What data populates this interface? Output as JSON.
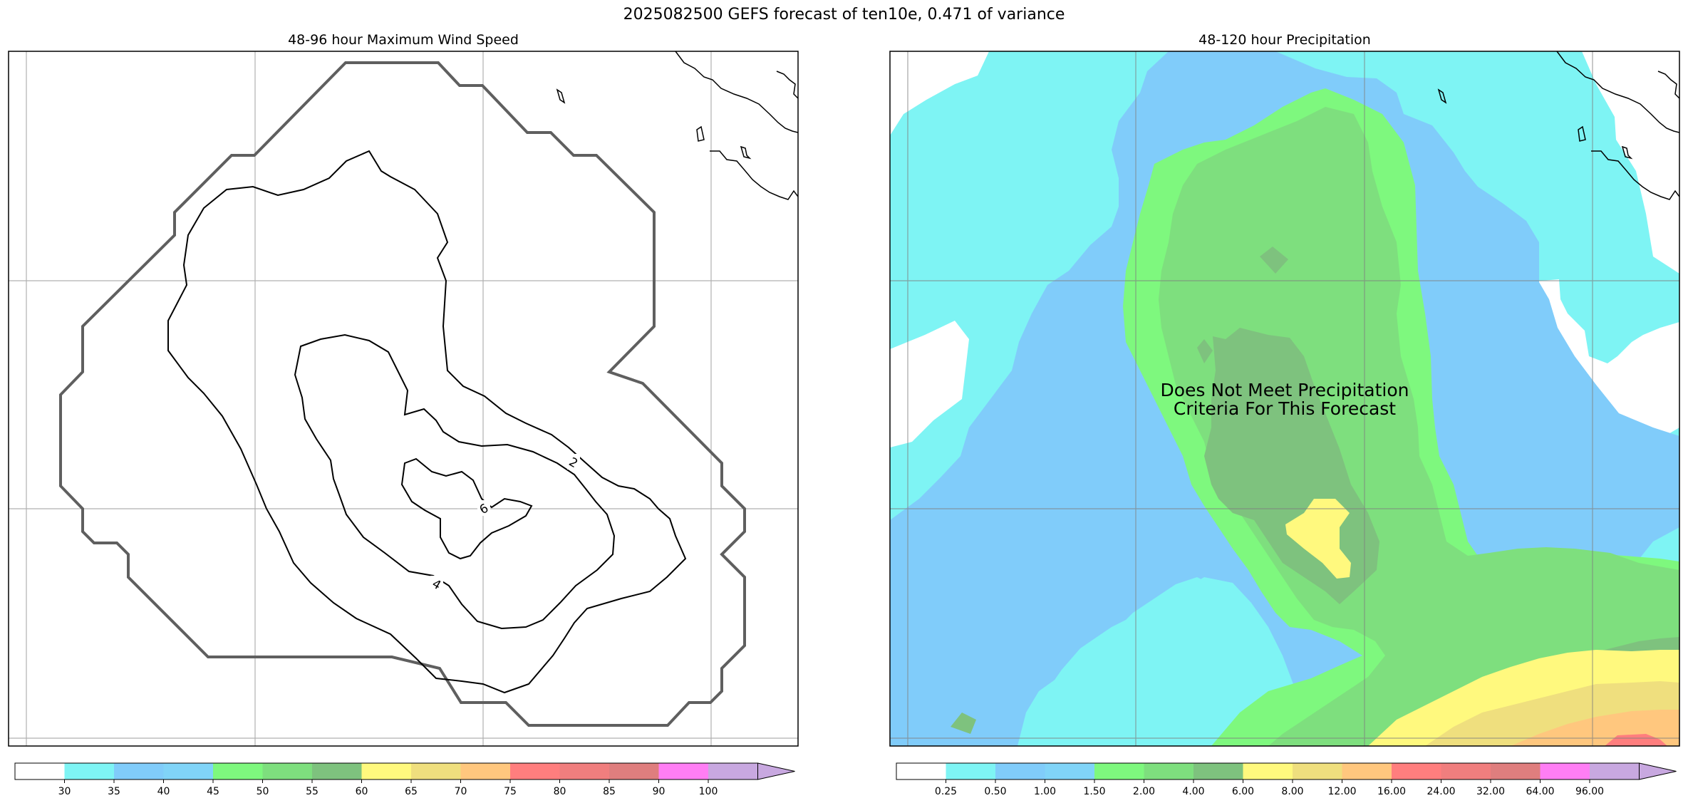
{
  "suptitle": "2025082500 GEFS forecast of ten10e, 0.471 of variance",
  "left_panel": {
    "title": "48-96 hour Maximum Wind Speed",
    "contour_labels": [
      "2",
      "4",
      "6"
    ],
    "colorbar": {
      "ticks": [
        "30",
        "35",
        "40",
        "45",
        "50",
        "55",
        "60",
        "65",
        "70",
        "75",
        "80",
        "85",
        "90",
        "100"
      ],
      "colors": [
        "#ffffff",
        "#7ef4f4",
        "#80ccfa",
        "#80d4f8",
        "#7ef87e",
        "#7edf7e",
        "#7ec27e",
        "#fff97e",
        "#efdf7e",
        "#ffc77e",
        "#ff7e7e",
        "#f07e7e",
        "#df7e7e",
        "#ff7ef4",
        "#c8a8e0"
      ]
    }
  },
  "right_panel": {
    "title": "48-120 hour Precipitation",
    "overlay_text": [
      "Does Not Meet Precipitation",
      "Criteria For This Forecast"
    ],
    "colorbar": {
      "ticks": [
        "0.25",
        "0.50",
        "1.00",
        "1.50",
        "2.00",
        "4.00",
        "6.00",
        "8.00",
        "12.00",
        "16.00",
        "24.00",
        "32.00",
        "64.00",
        "96.00"
      ],
      "colors": [
        "#ffffff",
        "#7ef4f4",
        "#80ccfa",
        "#80d4f8",
        "#7ef87e",
        "#7edf7e",
        "#7ec27e",
        "#fff97e",
        "#efdf7e",
        "#ffc77e",
        "#ff7e7e",
        "#f07e7e",
        "#df7e7e",
        "#ff7ef4",
        "#c8a8e0"
      ]
    }
  }
}
